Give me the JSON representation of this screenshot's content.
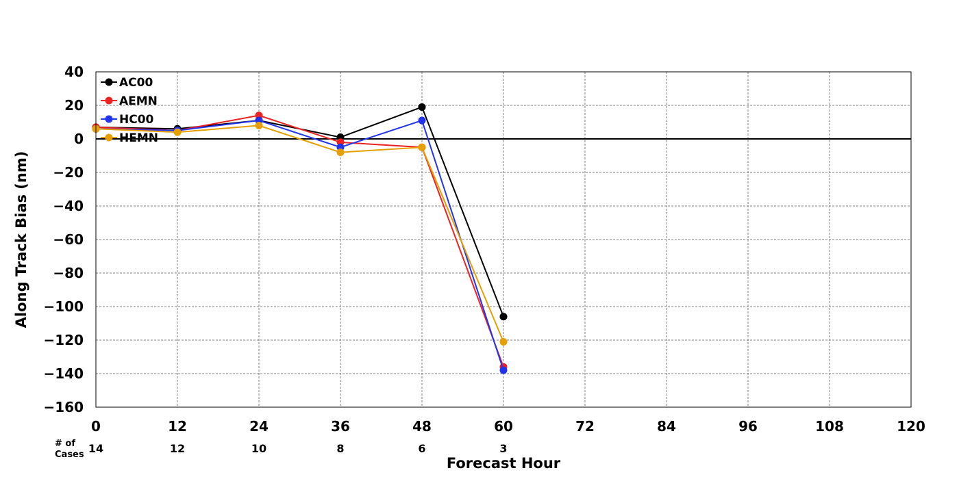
{
  "chart_data": {
    "type": "line",
    "title": "",
    "xlabel": "Forecast Hour",
    "ylabel": "Along Track Bias (nm)",
    "xlim": [
      0,
      120
    ],
    "ylim": [
      -160,
      40
    ],
    "xticks": [
      0,
      12,
      24,
      36,
      48,
      60,
      72,
      84,
      96,
      108,
      120
    ],
    "yticks": [
      40,
      20,
      0,
      -20,
      -40,
      -60,
      -80,
      -100,
      -120,
      -140,
      -160
    ],
    "ytick_labels": [
      "40",
      "20",
      "0",
      "−20",
      "−40",
      "−60",
      "−80",
      "−100",
      "−120",
      "−140",
      "−160"
    ],
    "grid": true,
    "zero_line": true,
    "legend_position": "top-left",
    "x": [
      0,
      12,
      24,
      36,
      48,
      60
    ],
    "series": [
      {
        "name": "AC00",
        "color": "#000000",
        "values": [
          7,
          6,
          11,
          1,
          19,
          -106
        ]
      },
      {
        "name": "AEMN",
        "color": "#ee2222",
        "values": [
          7,
          5,
          14,
          -2,
          -5,
          -136
        ]
      },
      {
        "name": "HC00",
        "color": "#2233ee",
        "values": [
          6,
          5,
          11,
          -5,
          11,
          -138
        ]
      },
      {
        "name": "HEMN",
        "color": "#e69f00",
        "values": [
          6,
          4,
          8,
          -8,
          -5,
          -121
        ]
      }
    ],
    "cases": {
      "label_line1": "# of",
      "label_line2": "Cases",
      "x": [
        0,
        12,
        24,
        36,
        48,
        60
      ],
      "values": [
        "14",
        "12",
        "10",
        "8",
        "6",
        "3"
      ]
    }
  }
}
